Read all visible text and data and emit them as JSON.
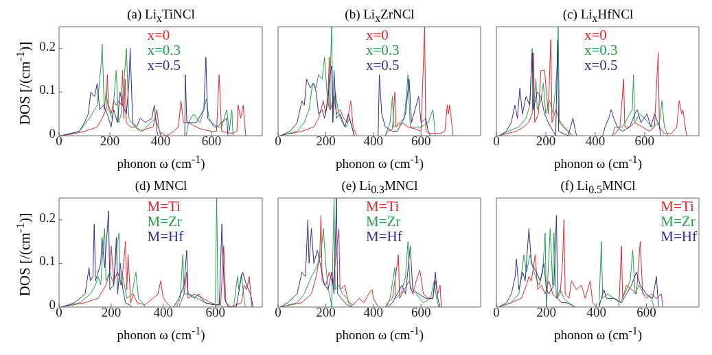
{
  "chart_data": [
    {
      "type": "line",
      "title": "(a) Li$_{x}$TiNCl",
      "xlabel": "phonon ω (cm$^{-1}$)",
      "ylabel": "DOS [/(cm$^{-1}$)]",
      "xlim": [
        0,
        800
      ],
      "xticks": [
        0,
        200,
        400,
        600
      ],
      "ylim": [
        0,
        0.25
      ],
      "yticks": [
        0,
        0.1,
        0.2
      ],
      "legend": "top",
      "series": [
        {
          "name": "x=0",
          "color": "#e8232b",
          "x": [
            20,
            100,
            150,
            170,
            185,
            190,
            195,
            205,
            215,
            225,
            235,
            245,
            250,
            255,
            260,
            265,
            280,
            300,
            320,
            340,
            370,
            385,
            395,
            420,
            440,
            470,
            480,
            490,
            510,
            540,
            560,
            600,
            620,
            630,
            640,
            680,
            700,
            705,
            715,
            725,
            735
          ],
          "values": [
            0,
            0.01,
            0.02,
            0.04,
            0.06,
            0.14,
            0.07,
            0.05,
            0.08,
            0.07,
            0.08,
            0.07,
            0.15,
            0.04,
            0.13,
            0.03,
            0.02,
            0.02,
            0.01,
            0.015,
            0.02,
            0.06,
            0.01,
            0,
            0.005,
            0.02,
            0.08,
            0.03,
            0.03,
            0.02,
            0.015,
            0.01,
            0.01,
            0.14,
            0.01,
            0.005,
            0.01,
            0.07,
            0.04,
            0.07,
            0
          ]
        },
        {
          "name": "x=0.3",
          "color": "#23a04a",
          "x": [
            10,
            80,
            120,
            150,
            165,
            170,
            178,
            185,
            195,
            210,
            225,
            235,
            245,
            255,
            265,
            275,
            285,
            300,
            330,
            360,
            380,
            395,
            400,
            450,
            500,
            510,
            530,
            555,
            570,
            580,
            590,
            610,
            640,
            660,
            670,
            680,
            685
          ],
          "values": [
            0,
            0.01,
            0.04,
            0.07,
            0.16,
            0.21,
            0.06,
            0.1,
            0.06,
            0.04,
            0.15,
            0.03,
            0.05,
            0.12,
            0.2,
            0.04,
            0.03,
            0.02,
            0.01,
            0.03,
            0.04,
            0.01,
            0,
            null,
            0,
            0.03,
            0.05,
            0.03,
            0.06,
            0.085,
            0.04,
            0.02,
            0.02,
            0.06,
            0.01,
            0.06,
            0
          ]
        },
        {
          "name": "x=0.5",
          "color": "#2b2f96",
          "x": [
            10,
            80,
            100,
            115,
            125,
            140,
            150,
            160,
            175,
            190,
            205,
            215,
            230,
            240,
            250,
            265,
            275,
            280,
            290,
            305,
            320,
            340,
            365,
            375,
            385,
            390,
            440,
            495,
            497,
            503,
            520,
            540,
            560,
            570,
            578,
            585,
            600,
            620,
            640,
            660,
            665
          ],
          "values": [
            0,
            0.01,
            0.03,
            0.05,
            0.1,
            0.09,
            0.12,
            0.06,
            0.07,
            0.05,
            0.02,
            0.06,
            0.03,
            0.1,
            0.07,
            0.05,
            0.12,
            0.2,
            0.03,
            0.02,
            0.04,
            0.03,
            0.04,
            0.07,
            0.01,
            0,
            null,
            0,
            0.14,
            0.03,
            0.03,
            0.03,
            0.05,
            0.06,
            0.18,
            0.04,
            0.03,
            0.02,
            0.03,
            0.04,
            0
          ]
        }
      ]
    },
    {
      "type": "line",
      "title": "(b) Li$_{x}$ZrNCl",
      "xlabel": "phonon ω (cm$^{-1}$)",
      "xlim": [
        0,
        850
      ],
      "xticks": [
        0,
        200,
        400,
        600
      ],
      "ylim": [
        0,
        0.25
      ],
      "yticks": [
        0,
        0.1,
        0.2
      ],
      "tick_labels": "x",
      "legend": "top",
      "series": [
        {
          "name": "x=0",
          "color": "#e8232b",
          "x": [
            10,
            100,
            150,
            170,
            180,
            190,
            200,
            210,
            215,
            220,
            235,
            245,
            260,
            275,
            290,
            305,
            315,
            330,
            390,
            450,
            460,
            480,
            490,
            495,
            520,
            545,
            580,
            600,
            615,
            620,
            640,
            680,
            700,
            710,
            715,
            720,
            735
          ],
          "values": [
            0,
            0.01,
            0.02,
            0.04,
            0.06,
            0.08,
            0.05,
            0.1,
            0.18,
            0.06,
            0.09,
            0.05,
            0.06,
            0.04,
            0.03,
            0.08,
            0.02,
            0,
            null,
            0,
            0.01,
            0.015,
            0.1,
            0.02,
            0.03,
            0.02,
            0.015,
            0.01,
            0.25,
            0.01,
            0.005,
            0.005,
            0.01,
            0.07,
            0.05,
            0.07,
            0
          ]
        },
        {
          "name": "x=0.3",
          "color": "#23a04a",
          "x": [
            10,
            80,
            110,
            130,
            145,
            160,
            170,
            185,
            195,
            205,
            215,
            225,
            230,
            240,
            255,
            270,
            285,
            300,
            320,
            385,
            450,
            470,
            480,
            485,
            510,
            530,
            540,
            545,
            555,
            580,
            600,
            630,
            650,
            660
          ],
          "values": [
            0,
            0.01,
            0.03,
            0.06,
            0.12,
            0.11,
            0.14,
            0.13,
            0.18,
            0.1,
            0.06,
            0.25,
            0.04,
            0.1,
            0.05,
            0.03,
            0.02,
            0.04,
            0,
            null,
            0,
            0.03,
            0.09,
            0.02,
            0.03,
            0.04,
            0.1,
            0.14,
            0.02,
            0.02,
            0.02,
            0.03,
            0.06,
            0
          ]
        },
        {
          "name": "x=0.5",
          "color": "#2b2f96",
          "x": [
            10,
            50,
            80,
            100,
            110,
            120,
            135,
            150,
            160,
            170,
            185,
            195,
            210,
            215,
            225,
            230,
            235,
            245,
            260,
            280,
            295,
            310,
            320,
            370,
            420,
            425,
            435,
            450,
            480,
            500,
            520,
            535,
            550,
            560,
            570,
            590,
            600,
            620,
            630,
            640
          ],
          "values": [
            0,
            0.01,
            0.03,
            0.08,
            0.07,
            0.13,
            0.11,
            0.12,
            0.1,
            0.05,
            0.06,
            0.04,
            0.08,
            0.13,
            0.16,
            0.03,
            0.15,
            0.04,
            0.05,
            0.02,
            0.05,
            0.02,
            0,
            null,
            0,
            0.14,
            0.05,
            0.02,
            0.01,
            0.01,
            0.03,
            0.05,
            0.13,
            0.03,
            0.05,
            0.09,
            0.03,
            0.04,
            0.01,
            0
          ]
        }
      ]
    },
    {
      "type": "line",
      "title": "(c) Li$_{x}$HfNCl",
      "xlabel": "phonon ω (cm$^{-1}$)",
      "xlim": [
        0,
        820
      ],
      "xticks": [
        0,
        200,
        400,
        600
      ],
      "ylim": [
        0,
        0.25
      ],
      "yticks": [
        0,
        0.1,
        0.2
      ],
      "tick_labels": "x",
      "legend": "top",
      "series": [
        {
          "name": "x=0",
          "color": "#e8232b",
          "x": [
            10,
            80,
            110,
            130,
            145,
            150,
            155,
            170,
            180,
            195,
            210,
            220,
            225,
            240,
            260,
            290,
            310,
            390,
            470,
            490,
            500,
            515,
            520,
            540,
            560,
            590,
            620,
            640,
            655,
            660,
            680,
            710,
            730,
            740,
            750,
            755,
            765,
            770
          ],
          "values": [
            0,
            0.01,
            0.02,
            0.03,
            0.05,
            0.19,
            0.03,
            0.05,
            0.15,
            0.15,
            0.05,
            0.22,
            0.03,
            0.06,
            0.03,
            0.01,
            0,
            null,
            0,
            0.01,
            0.02,
            0.13,
            0.02,
            0.02,
            0.03,
            0.02,
            0.01,
            0.02,
            0.19,
            0.02,
            0.005,
            0.005,
            0.02,
            0.08,
            0.05,
            0.06,
            0.02,
            0
          ]
        },
        {
          "name": "x=0.3",
          "color": "#23a04a",
          "x": [
            10,
            90,
            120,
            135,
            145,
            150,
            160,
            165,
            180,
            190,
            200,
            215,
            230,
            245,
            250,
            255,
            270,
            290,
            300,
            385,
            470,
            480,
            510,
            530,
            550,
            555,
            560,
            580,
            600,
            630,
            660,
            670,
            680,
            695
          ],
          "values": [
            0,
            0.02,
            0.04,
            0.07,
            0.2,
            0.06,
            0.13,
            0.06,
            0.08,
            0.12,
            0.05,
            0.08,
            0.05,
            0.15,
            0.25,
            0.03,
            0.02,
            0.01,
            0,
            null,
            0,
            0.02,
            0.02,
            0.04,
            0.06,
            0.14,
            0.03,
            0.05,
            0.04,
            0.02,
            0.03,
            0.08,
            0.02,
            0
          ]
        },
        {
          "name": "x=0.5",
          "color": "#2b2f96",
          "x": [
            10,
            40,
            60,
            75,
            85,
            95,
            105,
            120,
            135,
            145,
            150,
            165,
            180,
            195,
            210,
            230,
            240,
            248,
            252,
            270,
            290,
            300,
            310,
            320,
            325,
            380,
            430,
            440,
            455,
            465,
            475,
            490,
            510,
            540,
            560,
            570,
            585,
            610,
            625,
            640,
            660,
            665
          ],
          "values": [
            0,
            0.01,
            0.03,
            0.07,
            0.04,
            0.11,
            0.05,
            0.09,
            0.07,
            0.19,
            0.06,
            0.1,
            0.09,
            0.05,
            0.03,
            0.01,
            0,
            0.22,
            0.01,
            0.005,
            0,
            0.02,
            0.04,
            0.01,
            0,
            null,
            0,
            0.02,
            0.04,
            0.06,
            0.04,
            0.02,
            0.01,
            0.02,
            0.05,
            0.06,
            0.03,
            0.05,
            0.02,
            0.05,
            0.02,
            0
          ]
        }
      ]
    },
    {
      "type": "line",
      "title": "(d) MNCl",
      "xlabel": "phonon ω (cm$^{-1}$)",
      "ylabel": "DOS [/(cm$^{-1}$)]",
      "xlim": [
        0,
        780
      ],
      "xticks": [
        0,
        200,
        400,
        600
      ],
      "ylim": [
        0,
        0.25
      ],
      "yticks": [
        0,
        0.1,
        0.2
      ],
      "legend": "top",
      "series": [
        {
          "name": "M=Ti",
          "color": "#e8232b",
          "x": [
            10,
            100,
            150,
            180,
            195,
            200,
            210,
            225,
            240,
            255,
            260,
            265,
            275,
            285,
            300,
            330,
            360,
            380,
            390,
            400,
            420,
            430,
            445,
            460,
            480,
            490,
            495,
            520,
            550,
            600,
            620,
            632,
            640,
            660,
            700,
            710,
            720,
            730,
            740
          ],
          "values": [
            0,
            0.01,
            0.02,
            0.05,
            0.08,
            0.14,
            0.06,
            0.08,
            0.05,
            0.15,
            0.04,
            0.12,
            0.01,
            0.03,
            0.01,
            0.005,
            0.02,
            0.03,
            0.06,
            0.02,
            0.005,
            0,
            null,
            0,
            0.03,
            0.08,
            0.02,
            0.03,
            0.02,
            0.005,
            0.005,
            0.14,
            0.01,
            0,
            0.01,
            0.05,
            0.04,
            0.07,
            0
          ]
        },
        {
          "name": "M=Zr",
          "color": "#23a04a",
          "x": [
            10,
            80,
            120,
            140,
            150,
            160,
            170,
            175,
            180,
            195,
            210,
            220,
            230,
            235,
            245,
            260,
            280,
            295,
            305,
            320,
            330,
            390,
            450,
            465,
            475,
            480,
            500,
            530,
            560,
            590,
            600,
            605,
            610,
            630,
            650,
            670,
            685,
            690,
            700,
            710,
            715
          ],
          "values": [
            0,
            0.01,
            0.03,
            0.05,
            0.07,
            0.05,
            0.15,
            0.18,
            0.06,
            0.08,
            0.05,
            0.13,
            0.17,
            0.05,
            0.07,
            0.02,
            0.03,
            0.08,
            0.02,
            0.01,
            0,
            null,
            0,
            0.02,
            0.12,
            0.03,
            0.03,
            0.02,
            0.01,
            0.005,
            0.01,
            0.25,
            0.01,
            0,
            0,
            0,
            0.07,
            0.04,
            0.075,
            0.02,
            0
          ]
        },
        {
          "name": "M=Hf",
          "color": "#2b2f96",
          "x": [
            10,
            60,
            100,
            115,
            120,
            130,
            135,
            140,
            160,
            165,
            175,
            190,
            195,
            210,
            220,
            225,
            235,
            245,
            255,
            270,
            280,
            360,
            440,
            460,
            480,
            490,
            495,
            520,
            535,
            560,
            600,
            615,
            625,
            635,
            650,
            680,
            700,
            705,
            720,
            735,
            745
          ],
          "values": [
            0,
            0.01,
            0.03,
            0.09,
            0.06,
            0.07,
            0.19,
            0.06,
            0.1,
            0.16,
            0.09,
            0.22,
            0.04,
            0.05,
            0.16,
            0.03,
            0.1,
            0.04,
            0.01,
            0.005,
            0,
            null,
            0,
            0.02,
            0.05,
            0.13,
            0.03,
            0.02,
            0.03,
            0.01,
            0.005,
            0.005,
            0.19,
            0.02,
            0,
            0,
            0.07,
            0.08,
            0.05,
            0.03,
            0
          ]
        }
      ]
    },
    {
      "type": "line",
      "title": "(e) Li$_{0.3}$MNCl",
      "xlabel": "phonon ω (cm$^{-1}$)",
      "xlim": [
        0,
        850
      ],
      "xticks": [
        0,
        200,
        400,
        600
      ],
      "ylim": [
        0,
        0.25
      ],
      "yticks": [
        0,
        0.1,
        0.2
      ],
      "tick_labels": "x",
      "legend": "top",
      "series": [
        {
          "name": "M=Ti",
          "color": "#e8232b",
          "x": [
            10,
            100,
            140,
            160,
            175,
            180,
            185,
            200,
            215,
            230,
            255,
            260,
            280,
            295,
            315,
            340,
            360,
            380,
            395,
            400,
            420,
            435,
            450,
            460,
            480,
            505,
            510,
            530,
            550,
            565,
            580,
            595,
            610,
            630,
            650,
            660,
            670,
            680,
            685
          ],
          "values": [
            0,
            0.01,
            0.03,
            0.07,
            0.12,
            0.21,
            0.06,
            0.05,
            0.08,
            0.05,
            0.18,
            0.04,
            0.05,
            0.01,
            0.005,
            0.02,
            0.01,
            0.03,
            0.04,
            0.02,
            0,
            null,
            0,
            0.01,
            0.02,
            0.12,
            0.02,
            0.04,
            0.06,
            0.03,
            0.06,
            0.085,
            0.03,
            0.02,
            0.02,
            0.06,
            0.03,
            0.05,
            0
          ]
        },
        {
          "name": "M=Zr",
          "color": "#23a04a",
          "x": [
            10,
            80,
            110,
            140,
            160,
            180,
            190,
            200,
            210,
            220,
            225,
            235,
            240,
            255,
            270,
            290,
            310,
            380,
            455,
            470,
            490,
            495,
            515,
            535,
            545,
            555,
            580,
            610,
            640,
            655,
            665,
            675
          ],
          "values": [
            0,
            0.01,
            0.03,
            0.07,
            0.09,
            0.12,
            0.18,
            0.1,
            0.04,
            0.02,
            0,
            0.25,
            0.04,
            0.05,
            0.03,
            0.02,
            0,
            null,
            0,
            0.02,
            0.09,
            0.02,
            0.03,
            0.07,
            0.15,
            0.04,
            0.03,
            0.01,
            0.02,
            0.06,
            0.02,
            0
          ]
        },
        {
          "name": "M=Hf",
          "color": "#2b2f96",
          "x": [
            10,
            40,
            80,
            100,
            115,
            125,
            130,
            140,
            150,
            165,
            180,
            195,
            210,
            225,
            235,
            245,
            250,
            265,
            290,
            310,
            380,
            460,
            480,
            500,
            520,
            535,
            555,
            565,
            590,
            620,
            650,
            660,
            670,
            680
          ],
          "values": [
            0,
            0.01,
            0.03,
            0.08,
            0.07,
            0.2,
            0.1,
            0.18,
            0.1,
            0.13,
            0.09,
            0.05,
            0.04,
            0.08,
            0.03,
            0.25,
            0.03,
            0.02,
            0.005,
            0,
            null,
            0,
            0.01,
            0.03,
            0.05,
            0.03,
            0.14,
            0.04,
            0.03,
            0.02,
            0.02,
            0.08,
            0.02,
            0
          ]
        }
      ]
    },
    {
      "type": "line",
      "title": "(f) Li$_{0.5}$MNCl",
      "xlabel": "phonon ω (cm$^{-1}$)",
      "xlim": [
        0,
        810
      ],
      "xticks": [
        0,
        200,
        400,
        600
      ],
      "ylim": [
        0,
        0.25
      ],
      "yticks": [
        0,
        0.1,
        0.2
      ],
      "tick_labels": "x",
      "legend": "top right",
      "series": [
        {
          "name": "M=Ti",
          "color": "#e8232b",
          "x": [
            10,
            60,
            100,
            120,
            130,
            140,
            155,
            165,
            180,
            195,
            210,
            225,
            240,
            255,
            265,
            270,
            275,
            290,
            300,
            320,
            340,
            355,
            375,
            385,
            400,
            445,
            490,
            500,
            505,
            520,
            540,
            560,
            575,
            585,
            600,
            620,
            640,
            660,
            665
          ],
          "values": [
            0,
            0.01,
            0.02,
            0.05,
            0.07,
            0.06,
            0.12,
            0.04,
            0.05,
            0.03,
            0.06,
            0.03,
            0.02,
            0.03,
            0.11,
            0.2,
            0.03,
            0.02,
            0.06,
            0.04,
            0.05,
            0.02,
            0.06,
            0.01,
            0,
            null,
            0,
            0.14,
            0.02,
            0.05,
            0.04,
            0.03,
            0.15,
            0.03,
            0.02,
            0.03,
            0.02,
            0.03,
            0
          ]
        },
        {
          "name": "M=Zr",
          "color": "#23a04a",
          "x": [
            10,
            60,
            90,
            110,
            120,
            135,
            150,
            170,
            185,
            195,
            200,
            205,
            215,
            225,
            230,
            240,
            255,
            270,
            290,
            310,
            360,
            410,
            420,
            425,
            445,
            470,
            495,
            520,
            535,
            545,
            555,
            570,
            590,
            620,
            630
          ],
          "values": [
            0,
            0.01,
            0.03,
            0.12,
            0.08,
            0.12,
            0.08,
            0.05,
            0.08,
            0.17,
            0,
            0.06,
            0.18,
            0.05,
            0.17,
            0.02,
            0.04,
            0.02,
            0.01,
            0,
            null,
            0,
            0.15,
            0.02,
            0.03,
            0.02,
            0.01,
            0.04,
            0.06,
            0.13,
            0.03,
            0.05,
            0.03,
            0.02,
            0
          ]
        },
        {
          "name": "M=Hf",
          "color": "#2b2f96",
          "x": [
            10,
            40,
            60,
            75,
            80,
            90,
            105,
            115,
            130,
            140,
            160,
            175,
            190,
            200,
            210,
            230,
            240,
            245,
            260,
            280,
            300,
            315,
            360,
            410,
            430,
            440,
            470,
            500,
            520,
            540,
            560,
            575,
            600,
            625,
            640,
            648
          ],
          "values": [
            0,
            0.01,
            0.03,
            0.07,
            0.11,
            0.04,
            0.08,
            0.06,
            0.18,
            0.1,
            0.08,
            0.06,
            0.1,
            0.04,
            0.03,
            0.05,
            0.21,
            0.02,
            0.01,
            0.01,
            0.005,
            0,
            null,
            0,
            0.04,
            0.02,
            0.02,
            0.01,
            0.03,
            0.05,
            0.08,
            0.05,
            0.03,
            0.02,
            0.07,
            0
          ]
        }
      ]
    }
  ]
}
